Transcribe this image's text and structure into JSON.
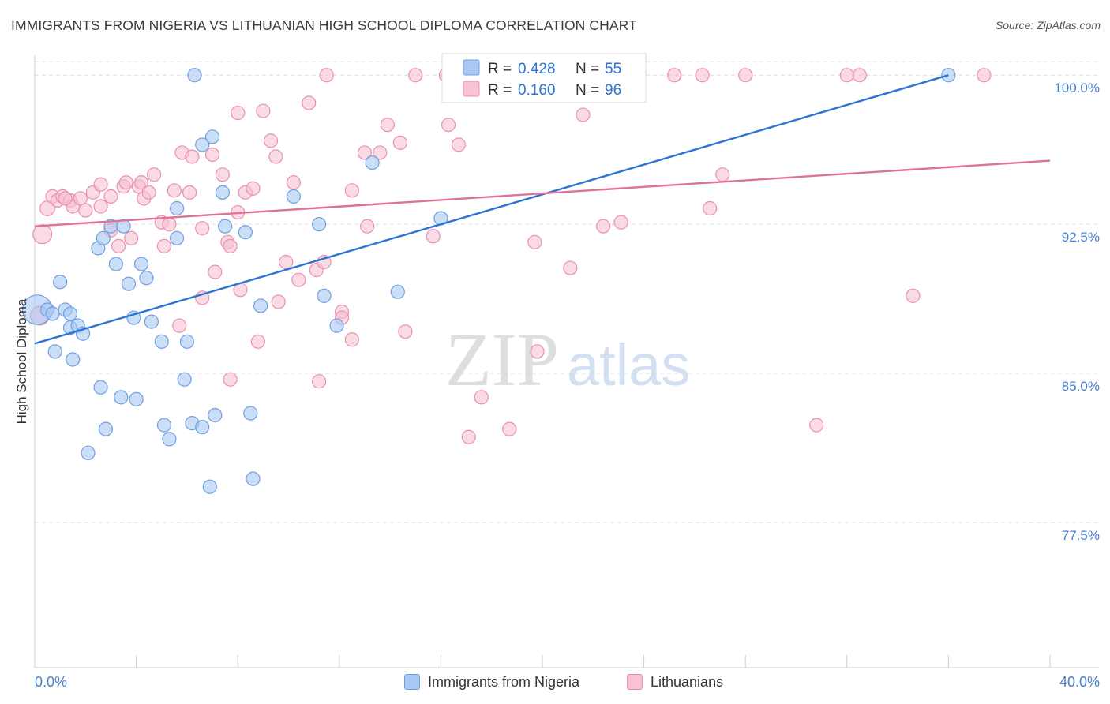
{
  "header": {
    "title": "IMMIGRANTS FROM NIGERIA VS LITHUANIAN HIGH SCHOOL DIPLOMA CORRELATION CHART",
    "source": "Source: ZipAtlas.com"
  },
  "watermark": {
    "part1": "ZIP",
    "part2": "atlas"
  },
  "colors": {
    "blue_fill": "#a9c8f3",
    "blue_stroke": "#6f9fe0",
    "blue_line": "#2b74d3",
    "pink_fill": "#f7c2d4",
    "pink_stroke": "#eb8fb0",
    "pink_line": "#e0719a",
    "tick_label": "#4a7fd0",
    "grid": "#dddddd"
  },
  "legend_box": {
    "rows": [
      {
        "series": "blue",
        "r_label": "R =",
        "r_value": "0.428",
        "n_label": "N =",
        "n_value": "55"
      },
      {
        "series": "pink",
        "r_label": "R =",
        "r_value": "0.160",
        "n_label": "N =",
        "n_value": "96"
      }
    ]
  },
  "chart_data": {
    "type": "scatter",
    "title": "IMMIGRANTS FROM NIGERIA VS LITHUANIAN HIGH SCHOOL DIPLOMA CORRELATION CHART",
    "xlabel": "",
    "ylabel": "High School Diploma",
    "xlim": [
      0,
      40
    ],
    "ylim": [
      70.2,
      101.0
    ],
    "x_tick_labels": [
      "0.0%",
      "40.0%"
    ],
    "y_ticks": [
      77.5,
      85.0,
      92.5,
      100.0
    ],
    "y_tick_labels": [
      "77.5%",
      "85.0%",
      "92.5%",
      "100.0%"
    ],
    "grid": true,
    "legend_position": "bottom",
    "series": [
      {
        "name": "Immigrants from Nigeria",
        "color": "#a9c8f3",
        "trend": {
          "x": [
            0,
            36
          ],
          "y": [
            86.5,
            100.0
          ]
        },
        "points": [
          [
            0.1,
            88.2,
            22
          ],
          [
            0.5,
            88.2,
            10
          ],
          [
            0.7,
            88.0,
            10
          ],
          [
            1.0,
            89.6,
            10
          ],
          [
            1.2,
            88.2,
            10
          ],
          [
            0.8,
            86.1,
            10
          ],
          [
            1.4,
            87.3,
            10
          ],
          [
            1.7,
            87.4,
            10
          ],
          [
            1.9,
            87.0,
            10
          ],
          [
            1.5,
            85.7,
            10
          ],
          [
            2.5,
            91.3,
            10
          ],
          [
            2.7,
            91.8,
            10
          ],
          [
            3.0,
            92.4,
            10
          ],
          [
            3.2,
            90.5,
            10
          ],
          [
            3.5,
            92.4,
            10
          ],
          [
            3.7,
            89.5,
            10
          ],
          [
            4.2,
            90.5,
            10
          ],
          [
            4.4,
            89.8,
            10
          ],
          [
            3.9,
            87.8,
            10
          ],
          [
            4.6,
            87.6,
            10
          ],
          [
            5.0,
            86.6,
            10
          ],
          [
            5.6,
            93.3,
            10
          ],
          [
            5.9,
            84.7,
            10
          ],
          [
            6.0,
            86.6,
            10
          ],
          [
            5.6,
            91.8,
            10
          ],
          [
            6.3,
            100.0,
            10
          ],
          [
            6.6,
            96.5,
            10
          ],
          [
            7.0,
            96.9,
            10
          ],
          [
            7.4,
            94.1,
            10
          ],
          [
            7.5,
            92.4,
            10
          ],
          [
            8.3,
            92.1,
            10
          ],
          [
            8.9,
            88.4,
            10
          ],
          [
            2.6,
            84.3,
            10
          ],
          [
            3.4,
            83.8,
            10
          ],
          [
            4.0,
            83.7,
            10
          ],
          [
            2.8,
            82.2,
            10
          ],
          [
            2.1,
            81.0,
            10
          ],
          [
            5.1,
            82.4,
            10
          ],
          [
            5.3,
            81.7,
            10
          ],
          [
            6.2,
            82.5,
            10
          ],
          [
            6.6,
            82.3,
            10
          ],
          [
            7.1,
            82.9,
            10
          ],
          [
            8.5,
            83.0,
            10
          ],
          [
            6.9,
            79.3,
            10
          ],
          [
            8.6,
            79.7,
            10
          ],
          [
            10.2,
            93.9,
            10
          ],
          [
            11.2,
            92.5,
            10
          ],
          [
            11.4,
            88.9,
            10
          ],
          [
            11.9,
            87.4,
            10
          ],
          [
            13.3,
            95.6,
            10
          ],
          [
            14.3,
            89.1,
            10
          ],
          [
            16.0,
            92.8,
            10
          ],
          [
            16.5,
            100.0,
            10
          ],
          [
            36.0,
            100.0,
            10
          ],
          [
            1.4,
            88.0,
            10
          ]
        ]
      },
      {
        "name": "Lithuanians",
        "color": "#f7c2d4",
        "trend": {
          "x": [
            0,
            40
          ],
          "y": [
            92.4,
            95.7
          ]
        },
        "points": [
          [
            0.2,
            87.9,
            14
          ],
          [
            0.3,
            92.0,
            14
          ],
          [
            0.5,
            93.3,
            11
          ],
          [
            0.7,
            93.9,
            10
          ],
          [
            0.9,
            93.7,
            10
          ],
          [
            1.1,
            93.9,
            10
          ],
          [
            1.4,
            93.7,
            10
          ],
          [
            1.5,
            93.4,
            10
          ],
          [
            1.8,
            93.8,
            10
          ],
          [
            2.0,
            93.2,
            10
          ],
          [
            2.3,
            94.1,
            10
          ],
          [
            2.6,
            93.4,
            10
          ],
          [
            2.6,
            94.5,
            10
          ],
          [
            3.0,
            93.9,
            10
          ],
          [
            3.0,
            92.2,
            10
          ],
          [
            3.3,
            91.4,
            10
          ],
          [
            3.5,
            94.4,
            10
          ],
          [
            3.6,
            94.6,
            10
          ],
          [
            3.8,
            91.8,
            10
          ],
          [
            4.1,
            94.4,
            10
          ],
          [
            4.2,
            94.6,
            10
          ],
          [
            4.3,
            93.8,
            10
          ],
          [
            4.5,
            94.1,
            10
          ],
          [
            4.7,
            95.0,
            10
          ],
          [
            5.0,
            92.6,
            10
          ],
          [
            5.1,
            91.4,
            10
          ],
          [
            5.3,
            92.5,
            10
          ],
          [
            5.5,
            94.2,
            10
          ],
          [
            5.7,
            87.4,
            10
          ],
          [
            5.8,
            96.1,
            10
          ],
          [
            6.1,
            94.1,
            10
          ],
          [
            6.2,
            95.9,
            10
          ],
          [
            6.6,
            92.3,
            10
          ],
          [
            6.6,
            88.8,
            10
          ],
          [
            7.0,
            96.0,
            10
          ],
          [
            7.1,
            90.1,
            10
          ],
          [
            7.4,
            95.0,
            10
          ],
          [
            7.6,
            91.6,
            10
          ],
          [
            7.7,
            91.4,
            10
          ],
          [
            7.7,
            84.7,
            10
          ],
          [
            8.0,
            98.1,
            10
          ],
          [
            8.0,
            93.1,
            10
          ],
          [
            8.1,
            89.2,
            10
          ],
          [
            8.3,
            94.1,
            10
          ],
          [
            8.6,
            94.3,
            10
          ],
          [
            8.8,
            86.6,
            10
          ],
          [
            9.0,
            98.2,
            10
          ],
          [
            9.3,
            96.7,
            10
          ],
          [
            9.5,
            95.9,
            10
          ],
          [
            9.6,
            88.6,
            10
          ],
          [
            9.9,
            90.6,
            10
          ],
          [
            10.2,
            94.6,
            10
          ],
          [
            10.4,
            89.7,
            10
          ],
          [
            10.8,
            98.6,
            10
          ],
          [
            11.1,
            90.2,
            10
          ],
          [
            11.2,
            84.6,
            10
          ],
          [
            11.4,
            90.6,
            10
          ],
          [
            11.5,
            100.0,
            10
          ],
          [
            12.1,
            88.1,
            10
          ],
          [
            12.1,
            87.8,
            10
          ],
          [
            12.5,
            94.2,
            10
          ],
          [
            12.5,
            86.7,
            10
          ],
          [
            13.0,
            96.1,
            10
          ],
          [
            13.1,
            92.4,
            10
          ],
          [
            13.6,
            96.1,
            10
          ],
          [
            13.9,
            97.5,
            10
          ],
          [
            14.4,
            96.6,
            10
          ],
          [
            14.6,
            87.1,
            10
          ],
          [
            15.0,
            100.0,
            10
          ],
          [
            15.7,
            91.9,
            10
          ],
          [
            16.2,
            100.0,
            10
          ],
          [
            16.3,
            97.5,
            10
          ],
          [
            16.7,
            96.5,
            10
          ],
          [
            17.1,
            81.8,
            10
          ],
          [
            17.6,
            83.8,
            10
          ],
          [
            18.7,
            82.2,
            10
          ],
          [
            19.7,
            91.6,
            10
          ],
          [
            19.8,
            86.1,
            10
          ],
          [
            20.1,
            100.0,
            10
          ],
          [
            21.1,
            90.3,
            10
          ],
          [
            21.6,
            98.0,
            10
          ],
          [
            22.4,
            92.4,
            10
          ],
          [
            23.1,
            92.6,
            10
          ],
          [
            23.7,
            100.0,
            10
          ],
          [
            25.2,
            100.0,
            10
          ],
          [
            26.3,
            100.0,
            10
          ],
          [
            26.6,
            93.3,
            10
          ],
          [
            27.1,
            95.0,
            10
          ],
          [
            28.0,
            100.0,
            10
          ],
          [
            30.8,
            82.4,
            10
          ],
          [
            32.0,
            100.0,
            10
          ],
          [
            32.5,
            100.0,
            10
          ],
          [
            34.6,
            88.9,
            10
          ],
          [
            37.4,
            100.0,
            10
          ],
          [
            23.8,
            100.0,
            10
          ],
          [
            1.2,
            93.8,
            10
          ]
        ]
      }
    ]
  }
}
